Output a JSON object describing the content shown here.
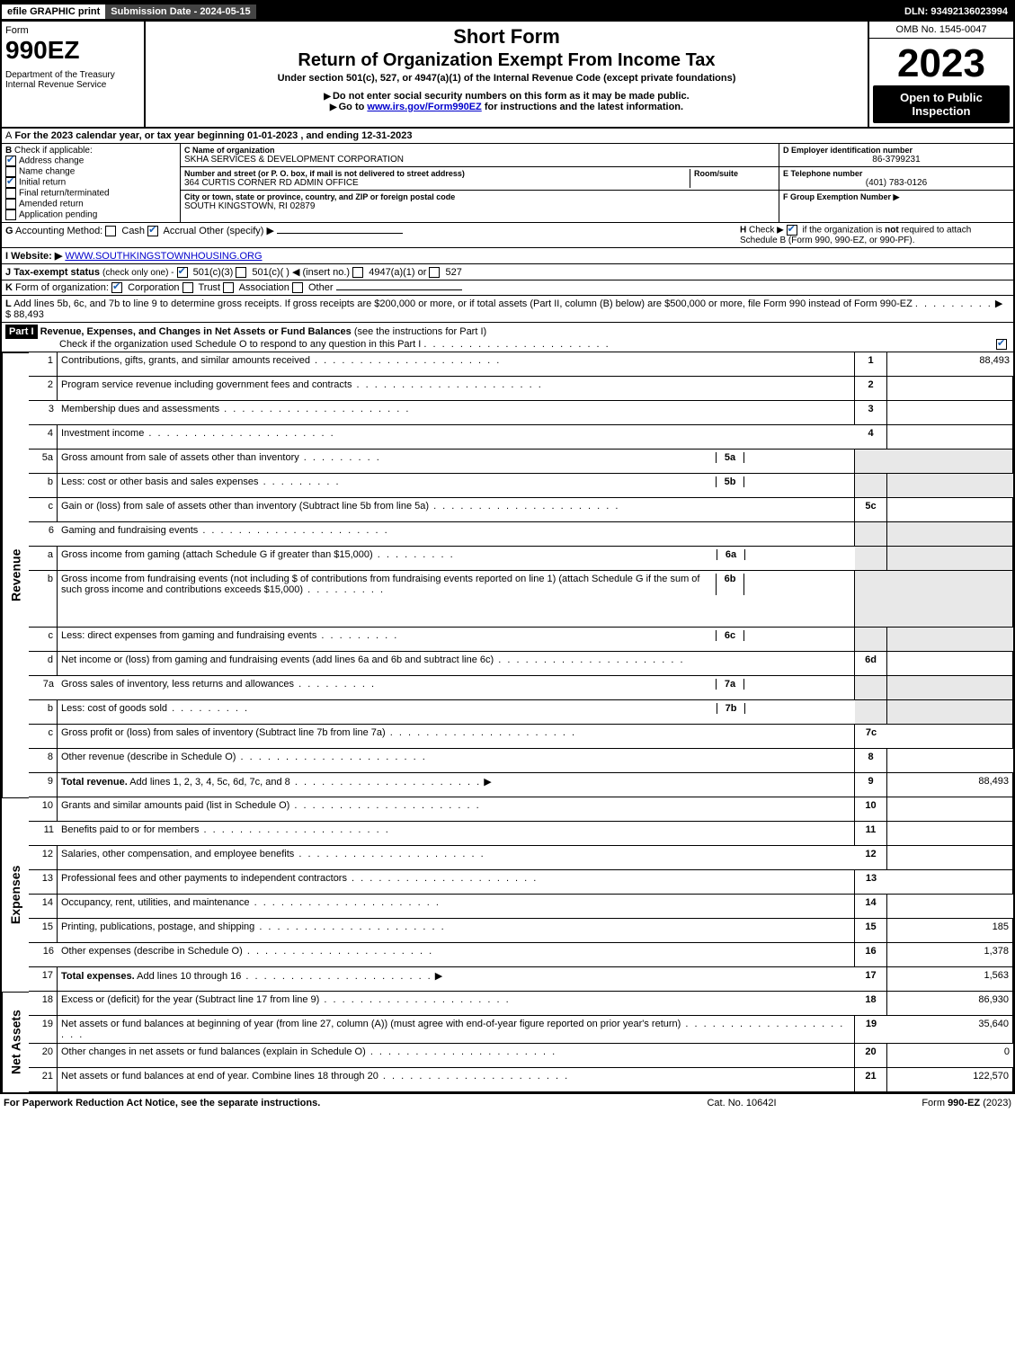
{
  "topbar": {
    "efile": "efile GRAPHIC print",
    "submission": "Submission Date - 2024-05-15",
    "dln": "DLN: 93492136023994"
  },
  "header": {
    "form_label": "Form",
    "form_number": "990EZ",
    "dept": "Department of the Treasury",
    "irs": "Internal Revenue Service",
    "title_short": "Short Form",
    "title_main": "Return of Organization Exempt From Income Tax",
    "subtitle": "Under section 501(c), 527, or 4947(a)(1) of the Internal Revenue Code (except private foundations)",
    "warn": "Do not enter social security numbers on this form as it may be made public.",
    "goto_pre": "Go to ",
    "goto_link": "www.irs.gov/Form990EZ",
    "goto_post": " for instructions and the latest information.",
    "omb": "OMB No. 1545-0047",
    "year": "2023",
    "open": "Open to Public Inspection"
  },
  "line_a": {
    "lead": "A",
    "text": "For the 2023 calendar year, or tax year beginning 01-01-2023 , and ending 12-31-2023"
  },
  "col_b": {
    "lead": "B",
    "label": "Check if applicable:",
    "items": [
      {
        "label": "Address change",
        "checked": true
      },
      {
        "label": "Name change",
        "checked": false
      },
      {
        "label": "Initial return",
        "checked": true
      },
      {
        "label": "Final return/terminated",
        "checked": false
      },
      {
        "label": "Amended return",
        "checked": false
      },
      {
        "label": "Application pending",
        "checked": false
      }
    ]
  },
  "col_c": {
    "name_lbl": "C Name of organization",
    "name_val": "SKHA SERVICES & DEVELOPMENT CORPORATION",
    "addr_lbl": "Number and street (or P. O. box, if mail is not delivered to street address)",
    "addr_val": "364 CURTIS CORNER RD ADMIN OFFICE",
    "room_lbl": "Room/suite",
    "city_lbl": "City or town, state or province, country, and ZIP or foreign postal code",
    "city_val": "SOUTH KINGSTOWN, RI  02879"
  },
  "col_def": {
    "d_lbl": "D Employer identification number",
    "d_val": "86-3799231",
    "e_lbl": "E Telephone number",
    "e_val": "(401) 783-0126",
    "f_lbl": "F Group Exemption Number ▶"
  },
  "line_g": {
    "lead": "G",
    "label": "Accounting Method:",
    "opts": [
      {
        "label": "Cash",
        "checked": false
      },
      {
        "label": "Accrual",
        "checked": true
      }
    ],
    "other": "Other (specify) ▶"
  },
  "line_h": {
    "lead": "H",
    "text_pre": "Check ▶ ",
    "text_post": " if the organization is ",
    "not": "not",
    "text_end": " required to attach Schedule B (Form 990, 990-EZ, or 990-PF).",
    "checked": true
  },
  "line_i": {
    "lead": "I",
    "label": "Website: ▶",
    "val": "WWW.SOUTHKINGSTOWNHOUSING.ORG"
  },
  "line_j": {
    "lead": "J",
    "label": "Tax-exempt status",
    "hint": "(check only one) -",
    "opts": [
      {
        "label": "501(c)(3)",
        "checked": true
      },
      {
        "label": "501(c)(  ) ◀ (insert no.)",
        "checked": false
      },
      {
        "label": "4947(a)(1) or",
        "checked": false
      },
      {
        "label": "527",
        "checked": false
      }
    ]
  },
  "line_k": {
    "lead": "K",
    "label": "Form of organization:",
    "opts": [
      {
        "label": "Corporation",
        "checked": true
      },
      {
        "label": "Trust",
        "checked": false
      },
      {
        "label": "Association",
        "checked": false
      },
      {
        "label": "Other",
        "checked": false
      }
    ]
  },
  "line_l": {
    "lead": "L",
    "text": "Add lines 5b, 6c, and 7b to line 9 to determine gross receipts. If gross receipts are $200,000 or more, or if total assets (Part II, column (B) below) are $500,000 or more, file Form 990 instead of Form 990-EZ",
    "amount": "$ 88,493"
  },
  "part1": {
    "badge": "Part I",
    "title": "Revenue, Expenses, and Changes in Net Assets or Fund Balances",
    "hint": "(see the instructions for Part I)",
    "check_text": "Check if the organization used Schedule O to respond to any question in this Part I",
    "checked": true
  },
  "sections": {
    "revenue_label": "Revenue",
    "expenses_label": "Expenses",
    "netassets_label": "Net Assets"
  },
  "rows": [
    {
      "sec": "rev",
      "n": "1",
      "desc": "Contributions, gifts, grants, and similar amounts received",
      "num": "1",
      "amt": "88,493"
    },
    {
      "sec": "rev",
      "n": "2",
      "desc": "Program service revenue including government fees and contracts",
      "num": "2",
      "amt": ""
    },
    {
      "sec": "rev",
      "n": "3",
      "desc": "Membership dues and assessments",
      "num": "3",
      "amt": ""
    },
    {
      "sec": "rev",
      "n": "4",
      "desc": "Investment income",
      "num": "4",
      "amt": ""
    },
    {
      "sec": "rev",
      "n": "5a",
      "desc": "Gross amount from sale of assets other than inventory",
      "inner_num": "5a",
      "shade": true
    },
    {
      "sec": "rev",
      "n": "b",
      "desc": "Less: cost or other basis and sales expenses",
      "inner_num": "5b",
      "shade": true
    },
    {
      "sec": "rev",
      "n": "c",
      "desc": "Gain or (loss) from sale of assets other than inventory (Subtract line 5b from line 5a)",
      "num": "5c",
      "amt": ""
    },
    {
      "sec": "rev",
      "n": "6",
      "desc": "Gaming and fundraising events",
      "shade": true
    },
    {
      "sec": "rev",
      "n": "a",
      "desc": "Gross income from gaming (attach Schedule G if greater than $15,000)",
      "inner_num": "6a",
      "shade": true
    },
    {
      "sec": "rev",
      "n": "b",
      "desc": "Gross income from fundraising events (not including $                      of contributions from fundraising events reported on line 1) (attach Schedule G if the sum of such gross income and contributions exceeds $15,000)",
      "inner_num": "6b",
      "shade": true,
      "tall": true
    },
    {
      "sec": "rev",
      "n": "c",
      "desc": "Less: direct expenses from gaming and fundraising events",
      "inner_num": "6c",
      "shade": true
    },
    {
      "sec": "rev",
      "n": "d",
      "desc": "Net income or (loss) from gaming and fundraising events (add lines 6a and 6b and subtract line 6c)",
      "num": "6d",
      "amt": ""
    },
    {
      "sec": "rev",
      "n": "7a",
      "desc": "Gross sales of inventory, less returns and allowances",
      "inner_num": "7a",
      "shade": true
    },
    {
      "sec": "rev",
      "n": "b",
      "desc": "Less: cost of goods sold",
      "inner_num": "7b",
      "shade": true
    },
    {
      "sec": "rev",
      "n": "c",
      "desc": "Gross profit or (loss) from sales of inventory (Subtract line 7b from line 7a)",
      "num": "7c",
      "amt": ""
    },
    {
      "sec": "rev",
      "n": "8",
      "desc": "Other revenue (describe in Schedule O)",
      "num": "8",
      "amt": ""
    },
    {
      "sec": "rev",
      "n": "9",
      "desc_bold": "Total revenue.",
      "desc": " Add lines 1, 2, 3, 4, 5c, 6d, 7c, and 8",
      "arrow": true,
      "num": "9",
      "amt": "88,493"
    },
    {
      "sec": "exp",
      "n": "10",
      "desc": "Grants and similar amounts paid (list in Schedule O)",
      "num": "10",
      "amt": ""
    },
    {
      "sec": "exp",
      "n": "11",
      "desc": "Benefits paid to or for members",
      "num": "11",
      "amt": ""
    },
    {
      "sec": "exp",
      "n": "12",
      "desc": "Salaries, other compensation, and employee benefits",
      "num": "12",
      "amt": ""
    },
    {
      "sec": "exp",
      "n": "13",
      "desc": "Professional fees and other payments to independent contractors",
      "num": "13",
      "amt": ""
    },
    {
      "sec": "exp",
      "n": "14",
      "desc": "Occupancy, rent, utilities, and maintenance",
      "num": "14",
      "amt": ""
    },
    {
      "sec": "exp",
      "n": "15",
      "desc": "Printing, publications, postage, and shipping",
      "num": "15",
      "amt": "185"
    },
    {
      "sec": "exp",
      "n": "16",
      "desc": "Other expenses (describe in Schedule O)",
      "num": "16",
      "amt": "1,378"
    },
    {
      "sec": "exp",
      "n": "17",
      "desc_bold": "Total expenses.",
      "desc": " Add lines 10 through 16",
      "arrow": true,
      "num": "17",
      "amt": "1,563"
    },
    {
      "sec": "net",
      "n": "18",
      "desc": "Excess or (deficit) for the year (Subtract line 17 from line 9)",
      "num": "18",
      "amt": "86,930"
    },
    {
      "sec": "net",
      "n": "19",
      "desc": "Net assets or fund balances at beginning of year (from line 27, column (A)) (must agree with end-of-year figure reported on prior year's return)",
      "num": "19",
      "amt": "35,640"
    },
    {
      "sec": "net",
      "n": "20",
      "desc": "Other changes in net assets or fund balances (explain in Schedule O)",
      "num": "20",
      "amt": "0"
    },
    {
      "sec": "net",
      "n": "21",
      "desc": "Net assets or fund balances at end of year. Combine lines 18 through 20",
      "num": "21",
      "amt": "122,570"
    }
  ],
  "footer": {
    "left": "For Paperwork Reduction Act Notice, see the separate instructions.",
    "mid": "Cat. No. 10642I",
    "right_pre": "Form ",
    "right_bold": "990-EZ",
    "right_post": " (2023)"
  }
}
